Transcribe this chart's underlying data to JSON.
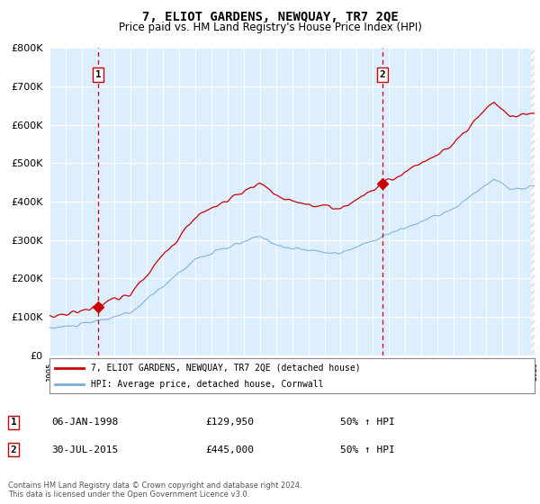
{
  "title": "7, ELIOT GARDENS, NEWQUAY, TR7 2QE",
  "subtitle": "Price paid vs. HM Land Registry's House Price Index (HPI)",
  "legend_line1": "7, ELIOT GARDENS, NEWQUAY, TR7 2QE (detached house)",
  "legend_line2": "HPI: Average price, detached house, Cornwall",
  "sale1_year": 1998.014,
  "sale1_price": 129950,
  "sale2_year": 2015.578,
  "sale2_price": 445000,
  "annotation1_date": "06-JAN-1998",
  "annotation1_price": "£129,950",
  "annotation1_hpi": "50% ↑ HPI",
  "annotation2_date": "30-JUL-2015",
  "annotation2_price": "£445,000",
  "annotation2_hpi": "50% ↑ HPI",
  "footer": "Contains HM Land Registry data © Crown copyright and database right 2024.\nThis data is licensed under the Open Government Licence v3.0.",
  "line_color_red": "#cc0000",
  "line_color_blue": "#7aaddb",
  "bg_color": "#ddeeff",
  "ylim": [
    0,
    800000
  ],
  "yticks": [
    0,
    100000,
    200000,
    300000,
    400000,
    500000,
    600000,
    700000,
    800000
  ],
  "x_start_year": 1995,
  "x_end_year": 2025
}
